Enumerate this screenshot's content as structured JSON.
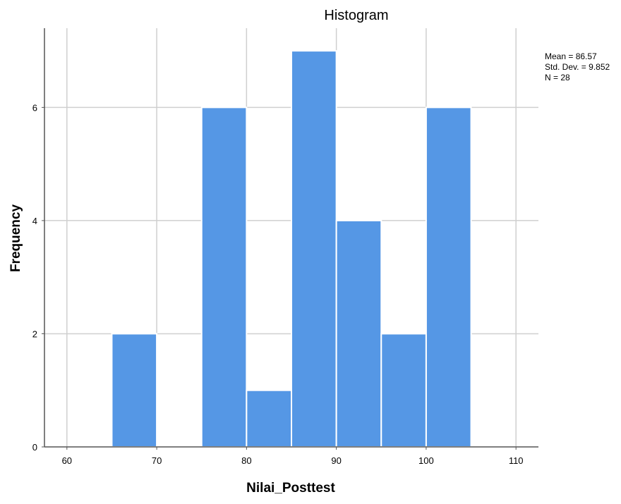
{
  "chart_data": {
    "type": "bar",
    "title": "Histogram",
    "xlabel": "Nilai_Posttest",
    "ylabel": "Frequency",
    "xlim": [
      57.5,
      112.5
    ],
    "ylim": [
      0,
      7.4
    ],
    "xticks": [
      60,
      70,
      80,
      90,
      100,
      110
    ],
    "yticks": [
      0,
      2,
      4,
      6
    ],
    "grid": true,
    "bar_color": "#5597e5",
    "bins": [
      {
        "x0": 65,
        "x1": 70,
        "count": 2
      },
      {
        "x0": 75,
        "x1": 80,
        "count": 6
      },
      {
        "x0": 80,
        "x1": 85,
        "count": 1
      },
      {
        "x0": 85,
        "x1": 90,
        "count": 7
      },
      {
        "x0": 90,
        "x1": 95,
        "count": 4
      },
      {
        "x0": 95,
        "x1": 100,
        "count": 2
      },
      {
        "x0": 100,
        "x1": 105,
        "count": 6
      }
    ],
    "stats": {
      "mean": "Mean = 86.57",
      "std_dev": "Std. Dev. = 9.852",
      "n": "N = 28"
    },
    "stats_placement": "top-right"
  }
}
